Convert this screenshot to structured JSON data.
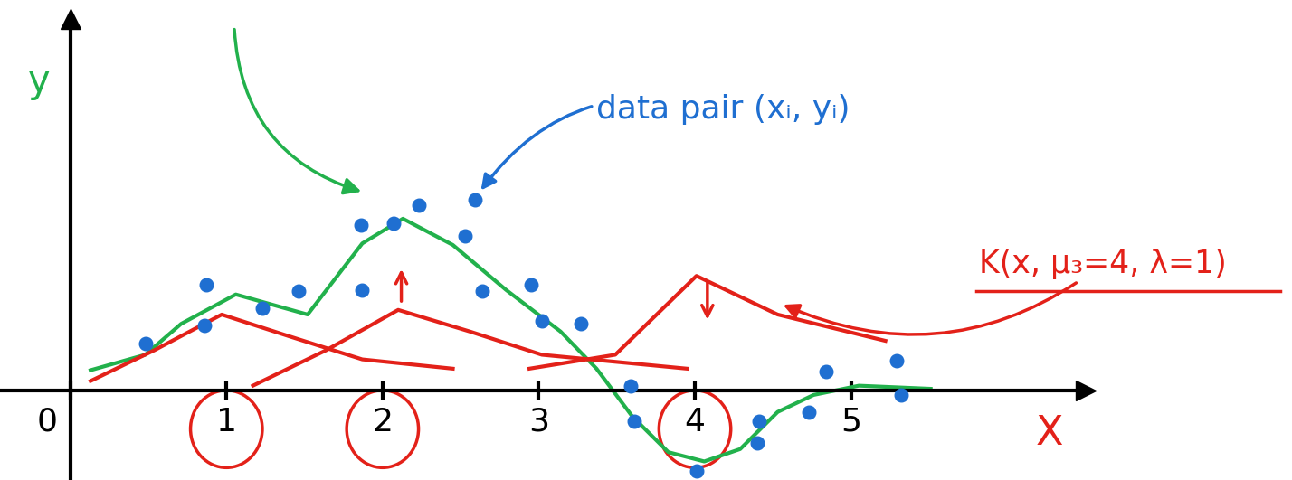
{
  "chart_data": {
    "type": "scatter",
    "xlabel": "X",
    "ylabel": "y",
    "xlim": [
      -0.45,
      6.5
    ],
    "ylim": [
      -0.58,
      2.4
    ],
    "xticks": [
      0,
      1,
      2,
      3,
      4,
      5
    ],
    "circled_ticks": [
      1,
      2,
      4
    ],
    "tick_labels": "x",
    "annotations": [
      "data pair (xᵢ, yᵢ)",
      "K(x, μ₃=4, λ=1)"
    ],
    "series": [
      {
        "type": "scatter",
        "color": "#1f6fd1",
        "marker": "o",
        "x": [
          0.48,
          0.87,
          0.86,
          1.23,
          1.46,
          1.87,
          1.86,
          2.07,
          2.23,
          2.53,
          2.59,
          2.64,
          2.95,
          3.02,
          3.27,
          3.59,
          3.61,
          4.01,
          4.4,
          4.41,
          4.73,
          4.84,
          5.29,
          5.32
        ],
        "values": [
          0.3,
          0.68,
          0.42,
          0.53,
          0.64,
          0.65,
          1.07,
          1.08,
          1.2,
          1.0,
          1.23,
          0.64,
          0.68,
          0.45,
          0.43,
          0.03,
          -0.2,
          -0.52,
          -0.34,
          -0.2,
          -0.14,
          0.12,
          0.19,
          -0.03
        ]
      },
      {
        "type": "line",
        "color": "#22b14c",
        "line_style": "solid",
        "x": [
          0.13,
          0.48,
          0.71,
          1.06,
          1.52,
          1.87,
          2.13,
          2.45,
          2.79,
          3.14,
          3.37,
          3.6,
          3.83,
          4.06,
          4.29,
          4.53,
          4.76,
          5.05,
          5.51
        ],
        "values": [
          0.13,
          0.23,
          0.43,
          0.62,
          0.49,
          0.95,
          1.11,
          0.94,
          0.65,
          0.38,
          0.14,
          -0.17,
          -0.4,
          -0.46,
          -0.38,
          -0.14,
          -0.03,
          0.03,
          0.01
        ]
      },
      {
        "type": "line",
        "color": "#e32119",
        "line_style": "solid",
        "x": [
          0.13,
          0.54,
          0.97,
          1.4,
          1.87,
          2.45
        ],
        "values": [
          0.06,
          0.26,
          0.49,
          0.35,
          0.2,
          0.14
        ]
      },
      {
        "type": "line",
        "color": "#e32119",
        "line_style": "solid",
        "x": [
          1.17,
          1.64,
          2.1,
          2.56,
          3.02,
          3.95
        ],
        "values": [
          0.03,
          0.26,
          0.52,
          0.38,
          0.23,
          0.14
        ]
      },
      {
        "type": "line",
        "color": "#e32119",
        "line_style": "solid",
        "x": [
          2.94,
          3.49,
          4.01,
          4.53,
          5.22
        ],
        "values": [
          0.14,
          0.23,
          0.74,
          0.49,
          0.32
        ]
      }
    ]
  }
}
